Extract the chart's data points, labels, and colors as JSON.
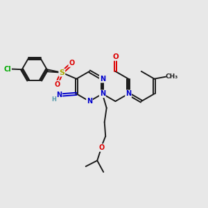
{
  "bg_color": "#e8e8e8",
  "bond_color": "#1a1a1a",
  "bond_width": 1.4,
  "dbo": 0.055,
  "atom_colors": {
    "N": "#0000cc",
    "O": "#dd0000",
    "S": "#aaaa00",
    "Cl": "#00aa00",
    "C": "#1a1a1a",
    "H": "#5599aa"
  },
  "font_size": 7.0,
  "fig_width": 3.0,
  "fig_height": 3.0,
  "dpi": 100,
  "xlim": [
    0,
    10
  ],
  "ylim": [
    0,
    10
  ]
}
